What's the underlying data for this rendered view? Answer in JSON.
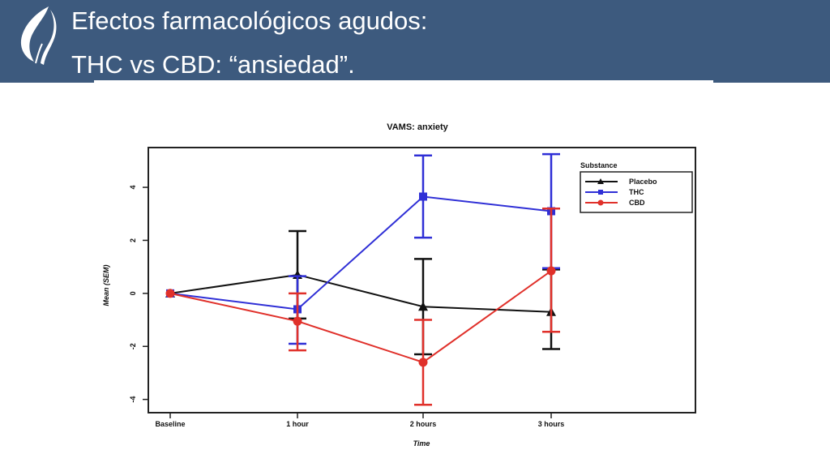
{
  "slide": {
    "title_line1": "Efectos farmacológicos agudos:",
    "title_line2": "THC vs CBD: “ansiedad”.",
    "header_color": "#3d5a7e",
    "logo_icon": "leaf-face-logo-icon"
  },
  "chart_data": {
    "type": "line",
    "title": "VAMS: anxiety",
    "xlabel": "Time",
    "ylabel": "Mean (SEM)",
    "categories": [
      "Baseline",
      "1 hour",
      "2 hours",
      "3 hours"
    ],
    "ylim": [
      -4.5,
      5.5
    ],
    "yticks": [
      -4,
      -2,
      0,
      2,
      4
    ],
    "grid": false,
    "legend": {
      "title": "Substance",
      "position": "top-right"
    },
    "series": [
      {
        "name": "Placebo",
        "color": "#111111",
        "marker": "triangle",
        "values": [
          0,
          0.7,
          -0.5,
          -0.7
        ],
        "err_low": [
          0,
          -0.95,
          -2.3,
          -2.1
        ],
        "err_high": [
          0,
          2.35,
          1.3,
          0.9
        ]
      },
      {
        "name": "THC",
        "color": "#2f2fd6",
        "marker": "square",
        "values": [
          0,
          -0.6,
          3.65,
          3.1
        ],
        "err_low": [
          0,
          -1.9,
          2.1,
          0.95
        ],
        "err_high": [
          0,
          0.65,
          5.2,
          5.25
        ]
      },
      {
        "name": "CBD",
        "color": "#e0302a",
        "marker": "circle",
        "values": [
          0,
          -1.05,
          -2.6,
          0.85
        ],
        "err_low": [
          0,
          -2.15,
          -4.2,
          -1.45
        ],
        "err_high": [
          0,
          0,
          -1.0,
          3.2
        ]
      }
    ]
  }
}
